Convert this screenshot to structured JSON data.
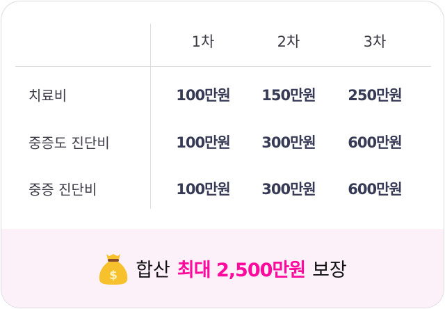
{
  "table": {
    "columns": [
      "1차",
      "2차",
      "3차"
    ],
    "rows": [
      {
        "label": "치료비",
        "values": [
          "100만원",
          "150만원",
          "250만원"
        ]
      },
      {
        "label": "중증도 진단비",
        "values": [
          "100만원",
          "300만원",
          "600만원"
        ]
      },
      {
        "label": "중증 진단비",
        "values": [
          "100만원",
          "300만원",
          "600만원"
        ]
      }
    ]
  },
  "banner": {
    "icon": "money-bag-icon",
    "prefix": "합산",
    "highlight": "최대 2,500만원",
    "suffix": "보장",
    "highlight_color": "#ff0a9c",
    "background_color": "#fcf0f9"
  }
}
